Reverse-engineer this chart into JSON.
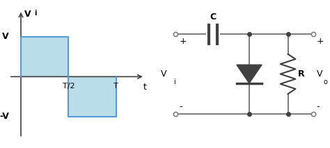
{
  "bg_color": "#ffffff",
  "wave_fill_color": "#add8e6",
  "wave_line_color": "#5b9bd5",
  "circuit_line_color": "#808080",
  "circuit_dark_color": "#404040",
  "text_color": "#000000",
  "label_Vi": "V",
  "label_Vi_sub": "i",
  "label_V": "V",
  "label_negV": "-V",
  "label_T2": "T/2",
  "label_T": "T",
  "label_t": "t",
  "label_C": "C",
  "label_R": "R",
  "label_Vi2": "V",
  "label_Vi2_sub": "i",
  "label_Vo": "V",
  "label_Vo_sub": "o",
  "label_plus": "+",
  "label_minus": "-"
}
